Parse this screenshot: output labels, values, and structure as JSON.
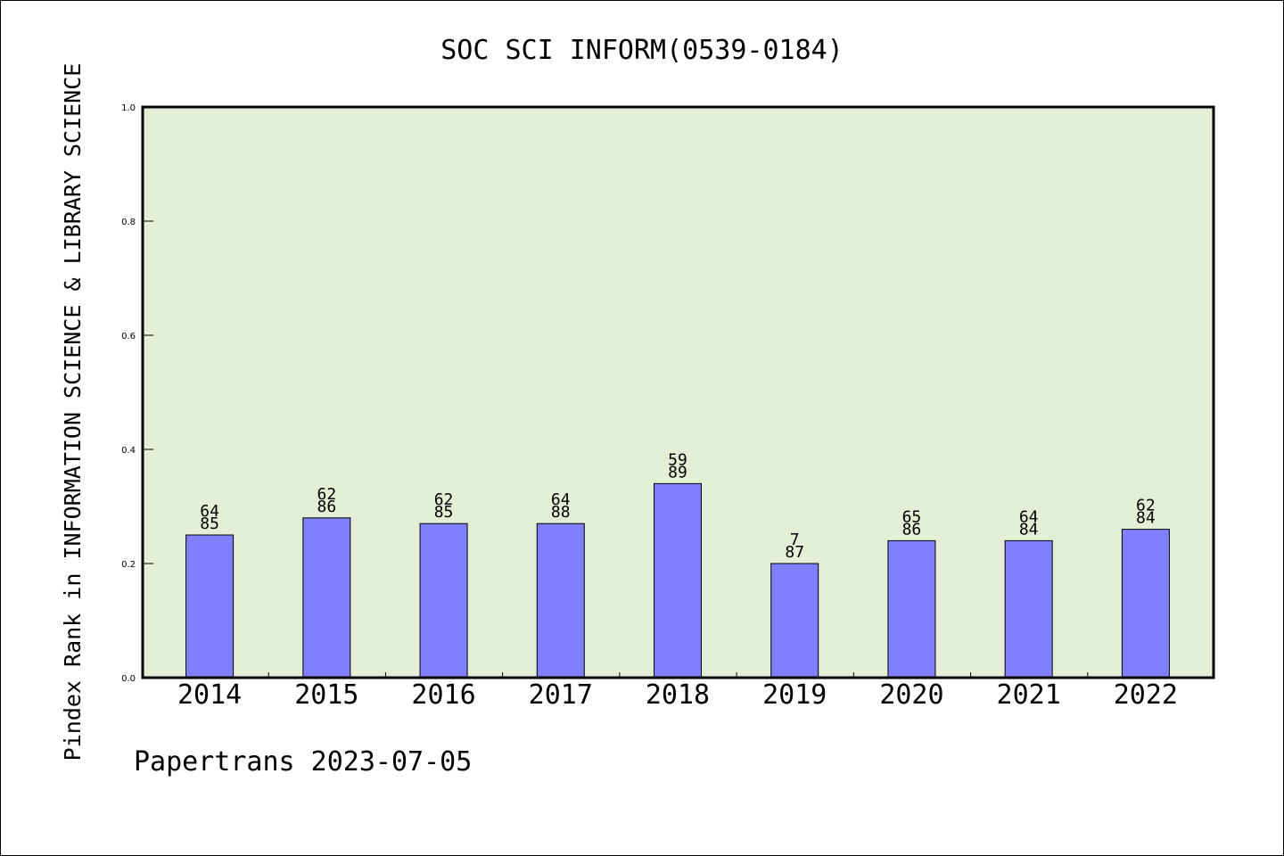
{
  "chart_data": {
    "type": "bar",
    "title": "SOC SCI INFORM(0539-0184)",
    "ylabel": "Pindex Rank in INFORMATION SCIENCE & LIBRARY SCIENCE",
    "xlabel": "",
    "categories": [
      "2014",
      "2015",
      "2016",
      "2017",
      "2018",
      "2019",
      "2020",
      "2021",
      "2022"
    ],
    "values": [
      0.25,
      0.28,
      0.27,
      0.27,
      0.34,
      0.2,
      0.24,
      0.24,
      0.26
    ],
    "labels_top": [
      "64",
      "62",
      "62",
      "64",
      "59",
      "7",
      "65",
      "64",
      "62"
    ],
    "labels_bottom": [
      "85",
      "86",
      "85",
      "88",
      "89",
      "87",
      "86",
      "84",
      "84"
    ],
    "ylim": [
      0,
      1.0
    ],
    "yticks": [
      "0.0",
      "0.2",
      "0.4",
      "0.6",
      "0.8",
      "1.0"
    ],
    "grid": false,
    "legend": "none",
    "colors": {
      "bar_fill": "#8080ff",
      "plot_background": "#e2efd6",
      "axis": "#000000"
    }
  },
  "footer": {
    "credit": "Papertrans 2023-07-05"
  }
}
